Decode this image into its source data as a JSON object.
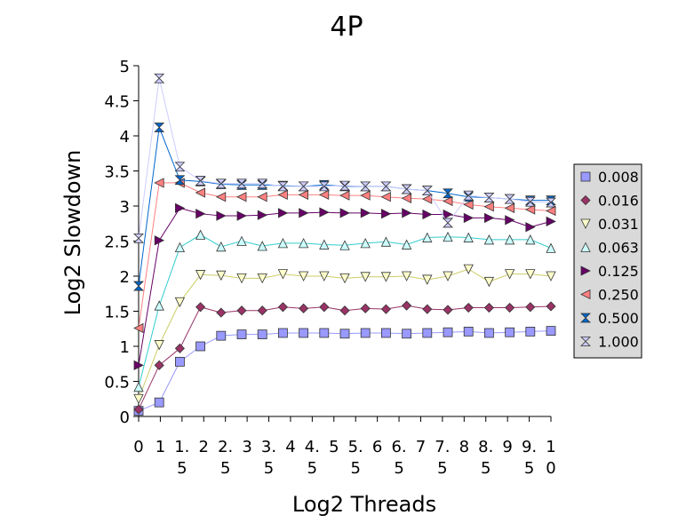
{
  "chart_data": {
    "type": "line",
    "title": "4P",
    "xlabel": "Log2 Threads",
    "ylabel": "Log2 Slowdown",
    "xlim": [
      0,
      10
    ],
    "ylim": [
      0,
      5
    ],
    "yticks": [
      0,
      0.5,
      1,
      1.5,
      2,
      2.5,
      3,
      3.5,
      4,
      4.5,
      5
    ],
    "ytick_labels": [
      "0",
      "0.5",
      "1",
      "1.5",
      "2",
      "2.5",
      "3",
      "3.5",
      "4",
      "4.5",
      "5"
    ],
    "xtick_labels": [
      {
        "x": 0,
        "lines": [
          "0"
        ]
      },
      {
        "x": 0.5,
        "lines": [
          "1"
        ]
      },
      {
        "x": 1,
        "lines": [
          "1.",
          "5"
        ]
      },
      {
        "x": 1.5,
        "lines": [
          "2"
        ]
      },
      {
        "x": 2,
        "lines": [
          "2.",
          "5"
        ]
      },
      {
        "x": 2.5,
        "lines": [
          "3"
        ]
      },
      {
        "x": 3,
        "lines": [
          "3.",
          "5"
        ]
      },
      {
        "x": 3.5,
        "lines": [
          "4"
        ]
      },
      {
        "x": 4,
        "lines": [
          "4.",
          "5"
        ]
      },
      {
        "x": 4.5,
        "lines": [
          "5"
        ]
      },
      {
        "x": 5,
        "lines": [
          "5.",
          "5"
        ]
      },
      {
        "x": 5.5,
        "lines": [
          "6"
        ]
      },
      {
        "x": 6,
        "lines": [
          "6.",
          "5"
        ]
      },
      {
        "x": 6.5,
        "lines": [
          "7"
        ]
      },
      {
        "x": 7,
        "lines": [
          "7.",
          "5"
        ]
      },
      {
        "x": 7.5,
        "lines": [
          "8"
        ]
      },
      {
        "x": 8,
        "lines": [
          "8.",
          "5"
        ]
      },
      {
        "x": 8.5,
        "lines": [
          "9"
        ]
      },
      {
        "x": 9,
        "lines": [
          "9.",
          "5"
        ]
      },
      {
        "x": 9.5,
        "lines": [
          "1",
          "0"
        ]
      }
    ],
    "grid": false,
    "legend_position": "right",
    "x": [
      0,
      0.5,
      1,
      1.5,
      2,
      2.5,
      3,
      3.5,
      4,
      4.5,
      5,
      5.5,
      6,
      6.5,
      7,
      7.5,
      8,
      8.5,
      9,
      9.5,
      10
    ],
    "series": [
      {
        "name": "0.008",
        "marker": "square",
        "fill": "#9999ff",
        "line": "#9999ff",
        "values": [
          0.08,
          0.2,
          0.78,
          1.0,
          1.15,
          1.17,
          1.17,
          1.19,
          1.19,
          1.19,
          1.18,
          1.19,
          1.19,
          1.18,
          1.19,
          1.2,
          1.21,
          1.19,
          1.2,
          1.21,
          1.22
        ]
      },
      {
        "name": "0.016",
        "marker": "diamond",
        "fill": "#993366",
        "line": "#993366",
        "values": [
          0.1,
          0.73,
          0.97,
          1.56,
          1.48,
          1.51,
          1.51,
          1.56,
          1.54,
          1.56,
          1.51,
          1.54,
          1.53,
          1.58,
          1.53,
          1.52,
          1.55,
          1.55,
          1.55,
          1.56,
          1.57
        ]
      },
      {
        "name": "0.031",
        "marker": "triangle-down",
        "fill": "#ffffcc",
        "line": "#cccc66",
        "values": [
          0.25,
          1.02,
          1.63,
          2.02,
          2.01,
          1.97,
          1.97,
          2.03,
          2.0,
          2.0,
          1.97,
          1.99,
          1.99,
          2.0,
          1.95,
          2.0,
          2.1,
          1.92,
          2.03,
          2.03,
          2.0
        ]
      },
      {
        "name": "0.063",
        "marker": "triangle-up",
        "fill": "#ccffff",
        "line": "#33cccc",
        "values": [
          0.42,
          1.58,
          2.41,
          2.59,
          2.42,
          2.5,
          2.43,
          2.47,
          2.47,
          2.45,
          2.44,
          2.47,
          2.49,
          2.45,
          2.55,
          2.56,
          2.55,
          2.52,
          2.52,
          2.52,
          2.4
        ]
      },
      {
        "name": "0.125",
        "marker": "triangle-right",
        "fill": "#660066",
        "line": "#660066",
        "values": [
          0.73,
          2.51,
          2.97,
          2.89,
          2.86,
          2.86,
          2.87,
          2.9,
          2.9,
          2.91,
          2.9,
          2.9,
          2.89,
          2.9,
          2.88,
          2.88,
          2.83,
          2.83,
          2.8,
          2.7,
          2.78
        ]
      },
      {
        "name": "0.250",
        "marker": "triangle-left",
        "fill": "#ff8080",
        "line": "#ff8080",
        "values": [
          1.26,
          3.33,
          3.33,
          3.19,
          3.13,
          3.13,
          3.13,
          3.16,
          3.16,
          3.16,
          3.15,
          3.15,
          3.13,
          3.11,
          3.1,
          3.07,
          3.02,
          2.99,
          2.97,
          2.95,
          2.93
        ]
      },
      {
        "name": "0.500",
        "marker": "bowtie",
        "fill": "#0066cc",
        "line": "#0066cc",
        "values": [
          1.86,
          4.12,
          3.37,
          3.35,
          3.31,
          3.3,
          3.3,
          3.29,
          3.28,
          3.3,
          3.28,
          3.28,
          3.28,
          3.24,
          3.22,
          3.18,
          3.13,
          3.12,
          3.1,
          3.08,
          3.08
        ]
      },
      {
        "name": "1.000",
        "marker": "hourglass",
        "fill": "#ccccff",
        "line": "#ccccff",
        "values": [
          2.54,
          4.82,
          3.56,
          3.36,
          3.32,
          3.32,
          3.32,
          3.28,
          3.28,
          3.28,
          3.29,
          3.28,
          3.28,
          3.24,
          3.22,
          2.76,
          3.15,
          3.12,
          3.1,
          3.06,
          3.05
        ]
      }
    ]
  }
}
